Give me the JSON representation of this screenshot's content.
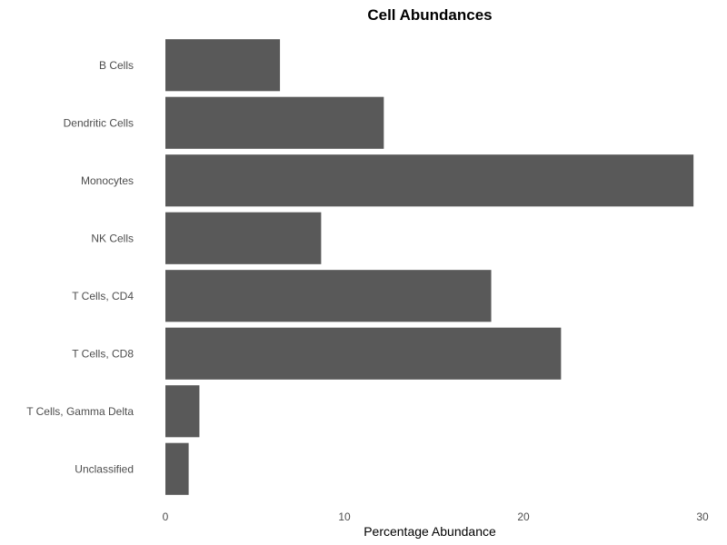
{
  "chart_data": {
    "type": "bar",
    "orientation": "horizontal",
    "title": "Cell Abundances",
    "xlabel": "Percentage Abundance",
    "ylabel": "",
    "categories": [
      "B Cells",
      "Dendritic Cells",
      "Monocytes",
      "NK Cells",
      "T Cells, CD4",
      "T Cells, CD8",
      "T Cells, Gamma Delta",
      "Unclassified"
    ],
    "values": [
      6.4,
      12.2,
      29.5,
      8.7,
      18.2,
      22.1,
      1.9,
      1.3
    ],
    "xlim": [
      0,
      30
    ],
    "xticks": [
      0,
      10,
      20,
      30
    ],
    "bar_color": "#595959",
    "grid": false,
    "legend": "none"
  }
}
